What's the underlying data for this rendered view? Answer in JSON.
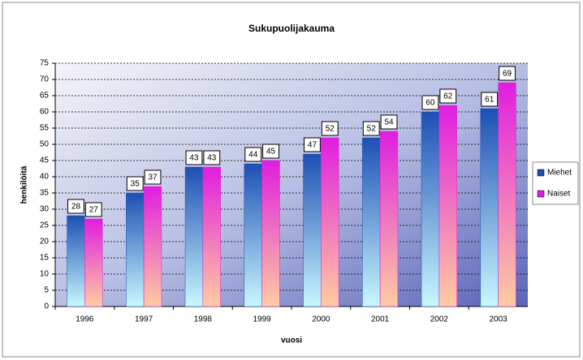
{
  "chart_data": {
    "type": "bar",
    "title": "Sukupuolijakauma",
    "x_label": "vuosi",
    "y_label": "henkilöitä",
    "categories": [
      "1996",
      "1997",
      "1998",
      "1999",
      "2000",
      "2001",
      "2002",
      "2003"
    ],
    "series": [
      {
        "name": "Miehet",
        "color": "#1e4fb4",
        "values": [
          28,
          35,
          43,
          44,
          47,
          52,
          60,
          61
        ]
      },
      {
        "name": "Naiset",
        "color": "#e01ee0",
        "values": [
          27,
          37,
          43,
          45,
          52,
          54,
          62,
          69
        ]
      }
    ],
    "ylim": [
      0,
      75
    ],
    "yticks": [
      0,
      5,
      10,
      15,
      20,
      25,
      30,
      35,
      40,
      45,
      50,
      55,
      60,
      65,
      70,
      75
    ],
    "grid": true,
    "legend": "right"
  }
}
